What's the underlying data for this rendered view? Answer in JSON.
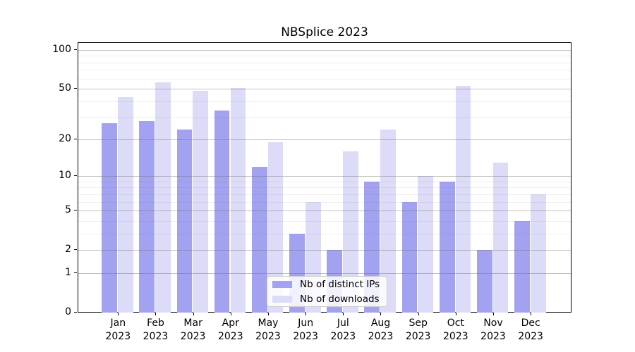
{
  "title": "NBSplice 2023",
  "chart_data": {
    "type": "bar",
    "title": "NBSplice 2023",
    "categories": [
      "Jan 2023",
      "Feb 2023",
      "Mar 2023",
      "Apr 2023",
      "May 2023",
      "Jun 2023",
      "Jul 2023",
      "Aug 2023",
      "Sep 2023",
      "Oct 2023",
      "Nov 2023",
      "Dec 2023"
    ],
    "x_tick_line1": [
      "Jan",
      "Feb",
      "Mar",
      "Apr",
      "May",
      "Jun",
      "Jul",
      "Aug",
      "Sep",
      "Oct",
      "Nov",
      "Dec"
    ],
    "x_tick_line2": "2023",
    "series": [
      {
        "name": "Nb of distinct IPs",
        "color": "#a2a2f0",
        "values": [
          27,
          28,
          24,
          34,
          12,
          3,
          2,
          9,
          6,
          9,
          2,
          4
        ]
      },
      {
        "name": "Nb of downloads",
        "color": "#dcdcf8",
        "values": [
          43,
          56,
          48,
          51,
          19,
          6,
          16,
          24,
          10,
          53,
          13,
          7
        ]
      }
    ],
    "yscale": "log10(1+x)",
    "ylim": [
      0,
      113
    ],
    "y_major_ticks": [
      0,
      1,
      2,
      5,
      10,
      20,
      50,
      100
    ],
    "y_minor_ticks": [
      3,
      4,
      6,
      7,
      8,
      9,
      30,
      40,
      60,
      70,
      80,
      90
    ],
    "grid": "horizontal",
    "legend_position": "lower center"
  },
  "colors": {
    "spine": "#000000",
    "background": "#ffffff",
    "grid_major": "#b0b0b0",
    "grid_minor": "#ececec"
  }
}
